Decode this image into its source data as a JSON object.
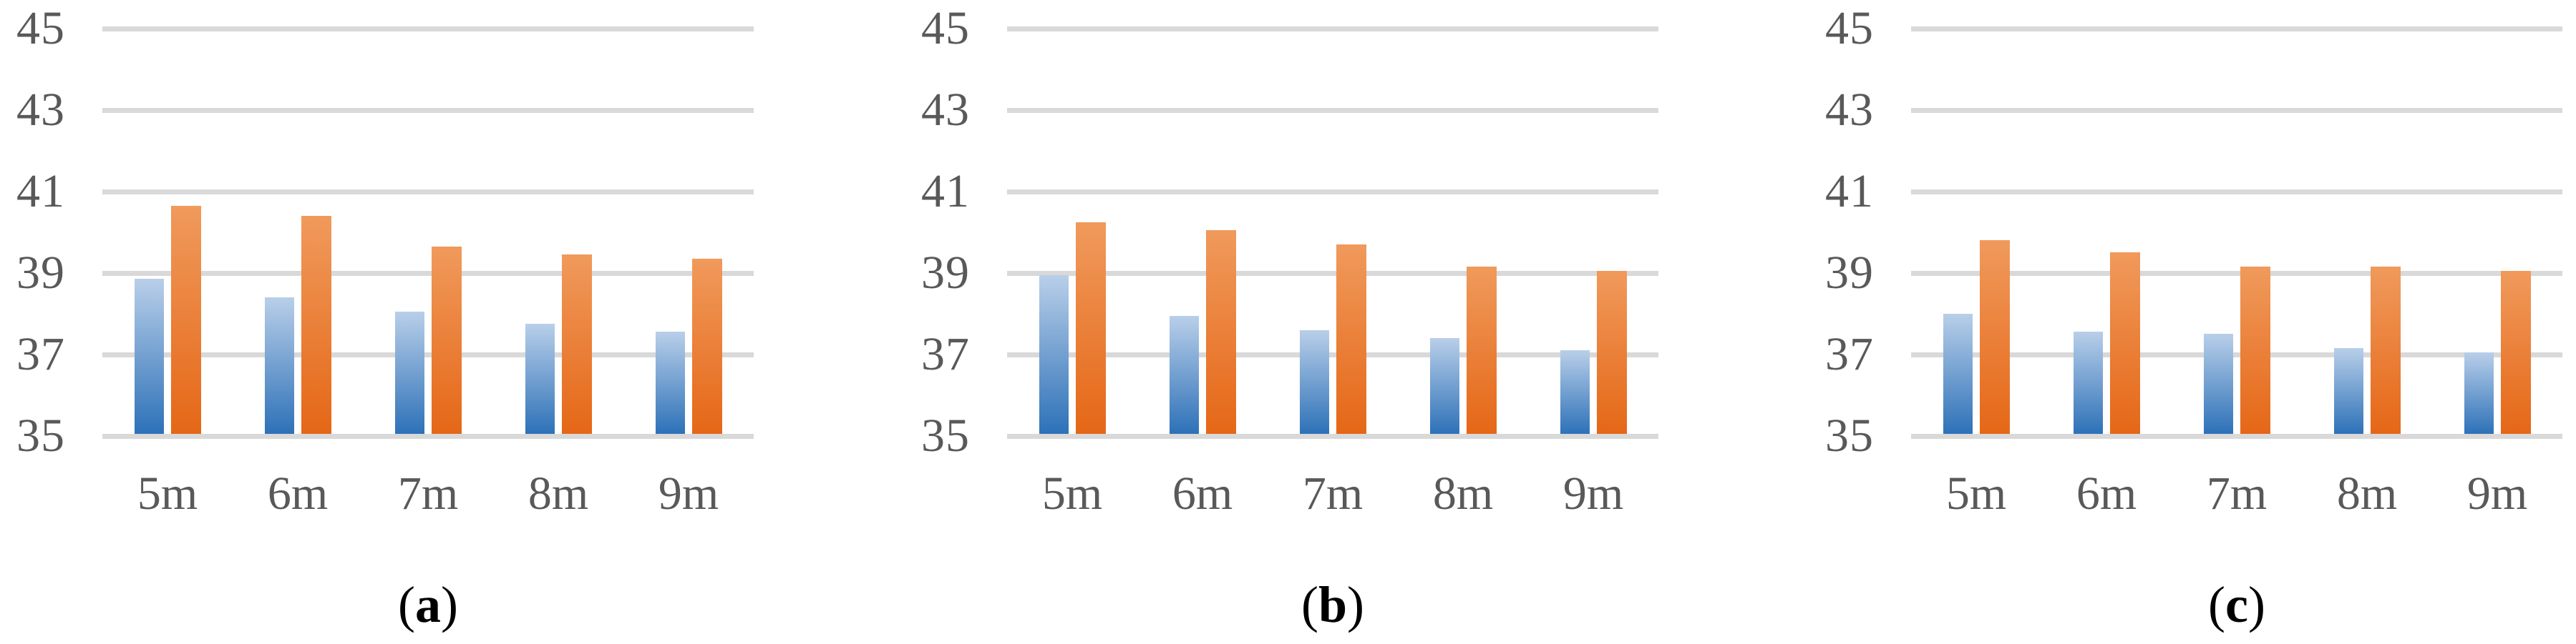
{
  "figure": {
    "description": "Three side-by-side grouped bar charts labeled (a), (b), (c), no titles, no legend, horizontal gridlines only"
  },
  "styles": {
    "background": "#ffffff",
    "bar_blue_top": "#b9cfe9",
    "bar_blue_bottom": "#2d71b8",
    "bar_orange_top": "#f09a5c",
    "bar_orange_bottom": "#e56717",
    "gridline_color": "#d9d9d9",
    "tick_text_color": "#595959",
    "caption_text_color": "#000000"
  },
  "chart_data": [
    {
      "type": "bar",
      "caption": "(a)",
      "title": "",
      "xlabel": "",
      "ylabel": "",
      "categories": [
        "5m",
        "6m",
        "7m",
        "8m",
        "9m"
      ],
      "series": [
        {
          "name": "blue",
          "values": [
            38.8,
            38.35,
            38.0,
            37.7,
            37.5
          ]
        },
        {
          "name": "orange",
          "values": [
            40.6,
            40.35,
            39.6,
            39.4,
            39.3
          ]
        }
      ],
      "ylim": [
        35,
        45
      ],
      "yticks": [
        45,
        43,
        41,
        39,
        37,
        35
      ],
      "grid": true,
      "legend": false
    },
    {
      "type": "bar",
      "caption": "(b)",
      "title": "",
      "xlabel": "",
      "ylabel": "",
      "categories": [
        "5m",
        "6m",
        "7m",
        "8m",
        "9m"
      ],
      "series": [
        {
          "name": "blue",
          "values": [
            38.9,
            37.9,
            37.55,
            37.35,
            37.05
          ]
        },
        {
          "name": "orange",
          "values": [
            40.2,
            40.0,
            39.65,
            39.1,
            39.0
          ]
        }
      ],
      "ylim": [
        35,
        45
      ],
      "yticks": [
        45,
        43,
        41,
        39,
        37,
        35
      ],
      "grid": true,
      "legend": false
    },
    {
      "type": "bar",
      "caption": "(c)",
      "title": "",
      "xlabel": "",
      "ylabel": "",
      "categories": [
        "5m",
        "6m",
        "7m",
        "8m",
        "9m"
      ],
      "series": [
        {
          "name": "blue",
          "values": [
            37.95,
            37.5,
            37.45,
            37.1,
            37.0
          ]
        },
        {
          "name": "orange",
          "values": [
            39.75,
            39.45,
            39.1,
            39.1,
            39.0
          ]
        }
      ],
      "ylim": [
        35,
        45
      ],
      "yticks": [
        45,
        43,
        41,
        39,
        37,
        35
      ],
      "grid": true,
      "legend": false
    }
  ]
}
